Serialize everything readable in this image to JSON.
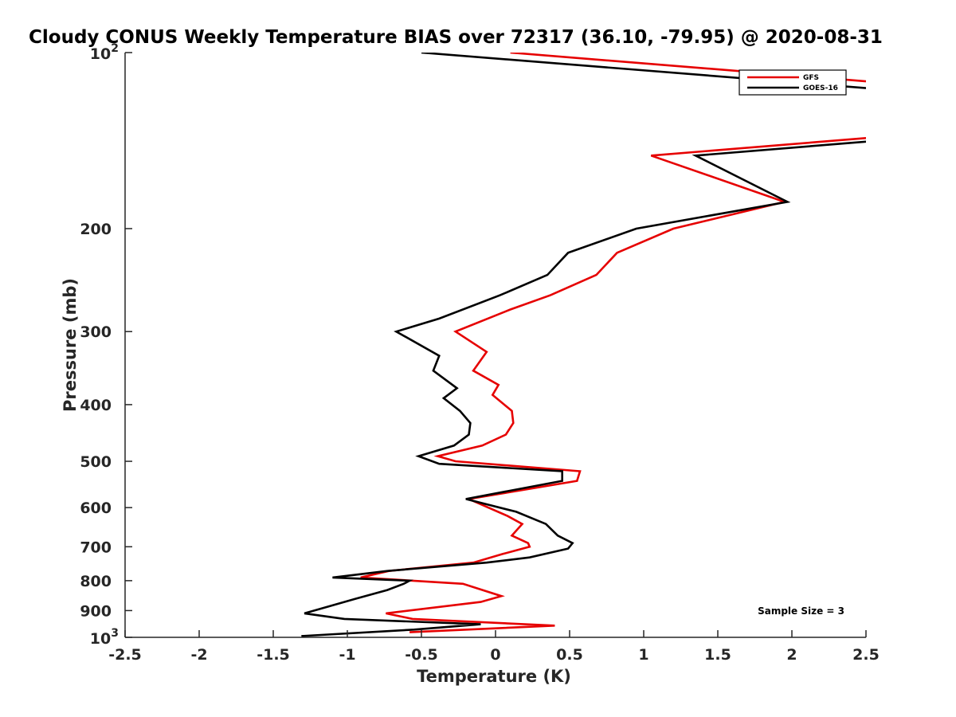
{
  "chart_data": {
    "type": "line",
    "title": "Cloudy CONUS Weekly Temperature BIAS over 72317 (36.10, -79.95) @ 2020-08-31",
    "xlabel": "Temperature (K)",
    "ylabel": "Pressure (mb)",
    "xlim": [
      -2.5,
      2.5
    ],
    "ylim": [
      100,
      1000
    ],
    "y_scale": "log",
    "y_direction": "reversed",
    "x_ticks": [
      "-2.5",
      "-2",
      "-1.5",
      "-1",
      "-0.5",
      "0",
      "0.5",
      "1",
      "1.5",
      "2",
      "2.5"
    ],
    "x_tick_values": [
      -2.5,
      -2,
      -1.5,
      -1,
      -0.5,
      0,
      0.5,
      1,
      1.5,
      2,
      2.5
    ],
    "y_ticks": [
      {
        "value": 100,
        "base": "10",
        "exp": "2"
      },
      {
        "value": 200,
        "label": "200"
      },
      {
        "value": 300,
        "label": "300"
      },
      {
        "value": 400,
        "label": "400"
      },
      {
        "value": 500,
        "label": "500"
      },
      {
        "value": 600,
        "label": "600"
      },
      {
        "value": 700,
        "label": "700"
      },
      {
        "value": 800,
        "label": "800"
      },
      {
        "value": 900,
        "label": "900"
      },
      {
        "value": 1000,
        "base": "10",
        "exp": "3"
      }
    ],
    "grid": false,
    "legend_position": "top-right",
    "annotation": "Sample Size = 3",
    "series": [
      {
        "name": "GFS",
        "color": "#e60000",
        "points": [
          [
            0.1,
            100
          ],
          [
            2.5,
            112
          ],
          [
            null,
            null
          ],
          [
            2.5,
            140
          ],
          [
            1.05,
            150
          ],
          [
            1.95,
            180
          ],
          [
            1.2,
            200
          ],
          [
            0.82,
            220
          ],
          [
            0.68,
            240
          ],
          [
            0.37,
            260
          ],
          [
            0.1,
            275
          ],
          [
            -0.27,
            300
          ],
          [
            -0.06,
            325
          ],
          [
            -0.15,
            350
          ],
          [
            0.02,
            370
          ],
          [
            -0.02,
            385
          ],
          [
            0.11,
            410
          ],
          [
            0.12,
            430
          ],
          [
            0.07,
            450
          ],
          [
            -0.09,
            470
          ],
          [
            -0.39,
            490
          ],
          [
            -0.27,
            500
          ],
          [
            0.57,
            520
          ],
          [
            0.55,
            540
          ],
          [
            -0.18,
            580
          ],
          [
            0.08,
            620
          ],
          [
            0.18,
            640
          ],
          [
            0.11,
            670
          ],
          [
            0.22,
            690
          ],
          [
            0.23,
            700
          ],
          [
            0.05,
            720
          ],
          [
            -0.15,
            745
          ],
          [
            -0.72,
            770
          ],
          [
            -0.91,
            790
          ],
          [
            -0.22,
            810
          ],
          [
            0.04,
            850
          ],
          [
            -0.1,
            870
          ],
          [
            -0.74,
            910
          ],
          [
            -0.56,
            930
          ],
          [
            0.4,
            955
          ],
          [
            -0.58,
            980
          ]
        ]
      },
      {
        "name": "GOES-16",
        "color": "#000000",
        "points": [
          [
            -0.5,
            100
          ],
          [
            2.5,
            115
          ],
          [
            null,
            null
          ],
          [
            2.5,
            142
          ],
          [
            1.35,
            150
          ],
          [
            1.97,
            180
          ],
          [
            0.95,
            200
          ],
          [
            0.49,
            220
          ],
          [
            0.35,
            240
          ],
          [
            0.03,
            260
          ],
          [
            -0.38,
            285
          ],
          [
            -0.67,
            300
          ],
          [
            -0.38,
            330
          ],
          [
            -0.42,
            350
          ],
          [
            -0.26,
            375
          ],
          [
            -0.35,
            390
          ],
          [
            -0.24,
            410
          ],
          [
            -0.17,
            430
          ],
          [
            -0.18,
            450
          ],
          [
            -0.28,
            470
          ],
          [
            -0.52,
            490
          ],
          [
            -0.38,
            505
          ],
          [
            0.45,
            520
          ],
          [
            0.45,
            540
          ],
          [
            -0.2,
            580
          ],
          [
            0.14,
            610
          ],
          [
            0.34,
            640
          ],
          [
            0.42,
            670
          ],
          [
            0.52,
            690
          ],
          [
            0.49,
            705
          ],
          [
            0.23,
            730
          ],
          [
            -0.06,
            745
          ],
          [
            -0.73,
            770
          ],
          [
            -1.1,
            790
          ],
          [
            -0.58,
            800
          ],
          [
            -0.62,
            810
          ],
          [
            -0.73,
            830
          ],
          [
            -0.95,
            860
          ],
          [
            -1.29,
            910
          ],
          [
            -1.02,
            930
          ],
          [
            -0.1,
            950
          ],
          [
            -0.55,
            970
          ],
          [
            -1.31,
            995
          ]
        ]
      }
    ]
  }
}
